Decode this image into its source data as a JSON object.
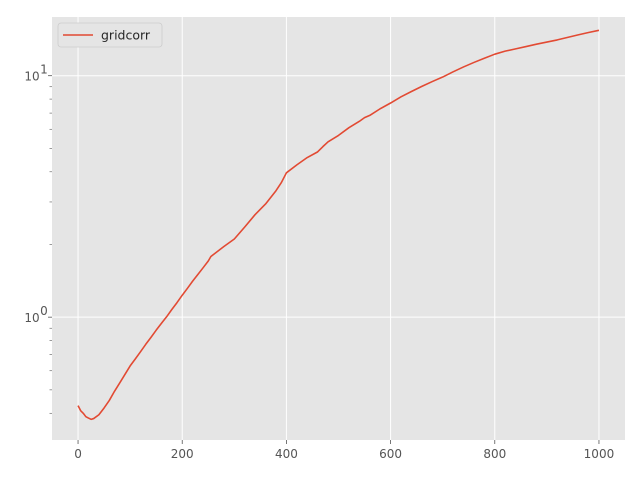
{
  "chart_data": {
    "type": "line",
    "title": "",
    "xlabel": "",
    "ylabel": "",
    "xlim": [
      -50,
      1050
    ],
    "ylim": [
      0.31,
      17.5
    ],
    "yscale": "log",
    "grid": true,
    "legend_position": "top-left",
    "x_ticks": [
      0,
      200,
      400,
      600,
      800,
      1000
    ],
    "x_tick_labels": [
      "0",
      "200",
      "400",
      "600",
      "800",
      "1000"
    ],
    "y_major_ticks": [
      1,
      10
    ],
    "y_tick_labels": [
      "10",
      "10"
    ],
    "y_tick_exponents": [
      "0",
      "1"
    ],
    "series": [
      {
        "name": "gridcorr",
        "color": "#E24A33",
        "x": [
          0,
          5,
          10,
          15,
          20,
          25,
          30,
          40,
          50,
          60,
          70,
          80,
          90,
          100,
          110,
          120,
          130,
          140,
          150,
          160,
          170,
          180,
          190,
          200,
          210,
          220,
          230,
          240,
          250,
          255,
          260,
          280,
          300,
          320,
          340,
          360,
          380,
          390,
          400,
          420,
          440,
          460,
          470,
          480,
          500,
          520,
          540,
          550,
          560,
          580,
          600,
          620,
          640,
          660,
          680,
          700,
          720,
          740,
          760,
          780,
          800,
          820,
          840,
          860,
          880,
          900,
          920,
          940,
          960,
          980,
          1000
        ],
        "y": [
          0.43,
          0.41,
          0.4,
          0.39,
          0.385,
          0.38,
          0.382,
          0.395,
          0.42,
          0.45,
          0.49,
          0.53,
          0.575,
          0.625,
          0.67,
          0.72,
          0.775,
          0.83,
          0.89,
          0.95,
          1.01,
          1.08,
          1.15,
          1.23,
          1.31,
          1.4,
          1.49,
          1.59,
          1.7,
          1.78,
          1.82,
          1.97,
          2.12,
          2.38,
          2.68,
          2.96,
          3.35,
          3.6,
          3.95,
          4.25,
          4.55,
          4.8,
          5.05,
          5.3,
          5.65,
          6.1,
          6.5,
          6.75,
          6.9,
          7.35,
          7.75,
          8.2,
          8.6,
          9.0,
          9.4,
          9.8,
          10.3,
          10.8,
          11.3,
          11.8,
          12.3,
          12.7,
          13.0,
          13.3,
          13.6,
          13.85,
          14.1,
          14.4,
          14.7,
          15.0,
          15.3
        ]
      }
    ]
  }
}
